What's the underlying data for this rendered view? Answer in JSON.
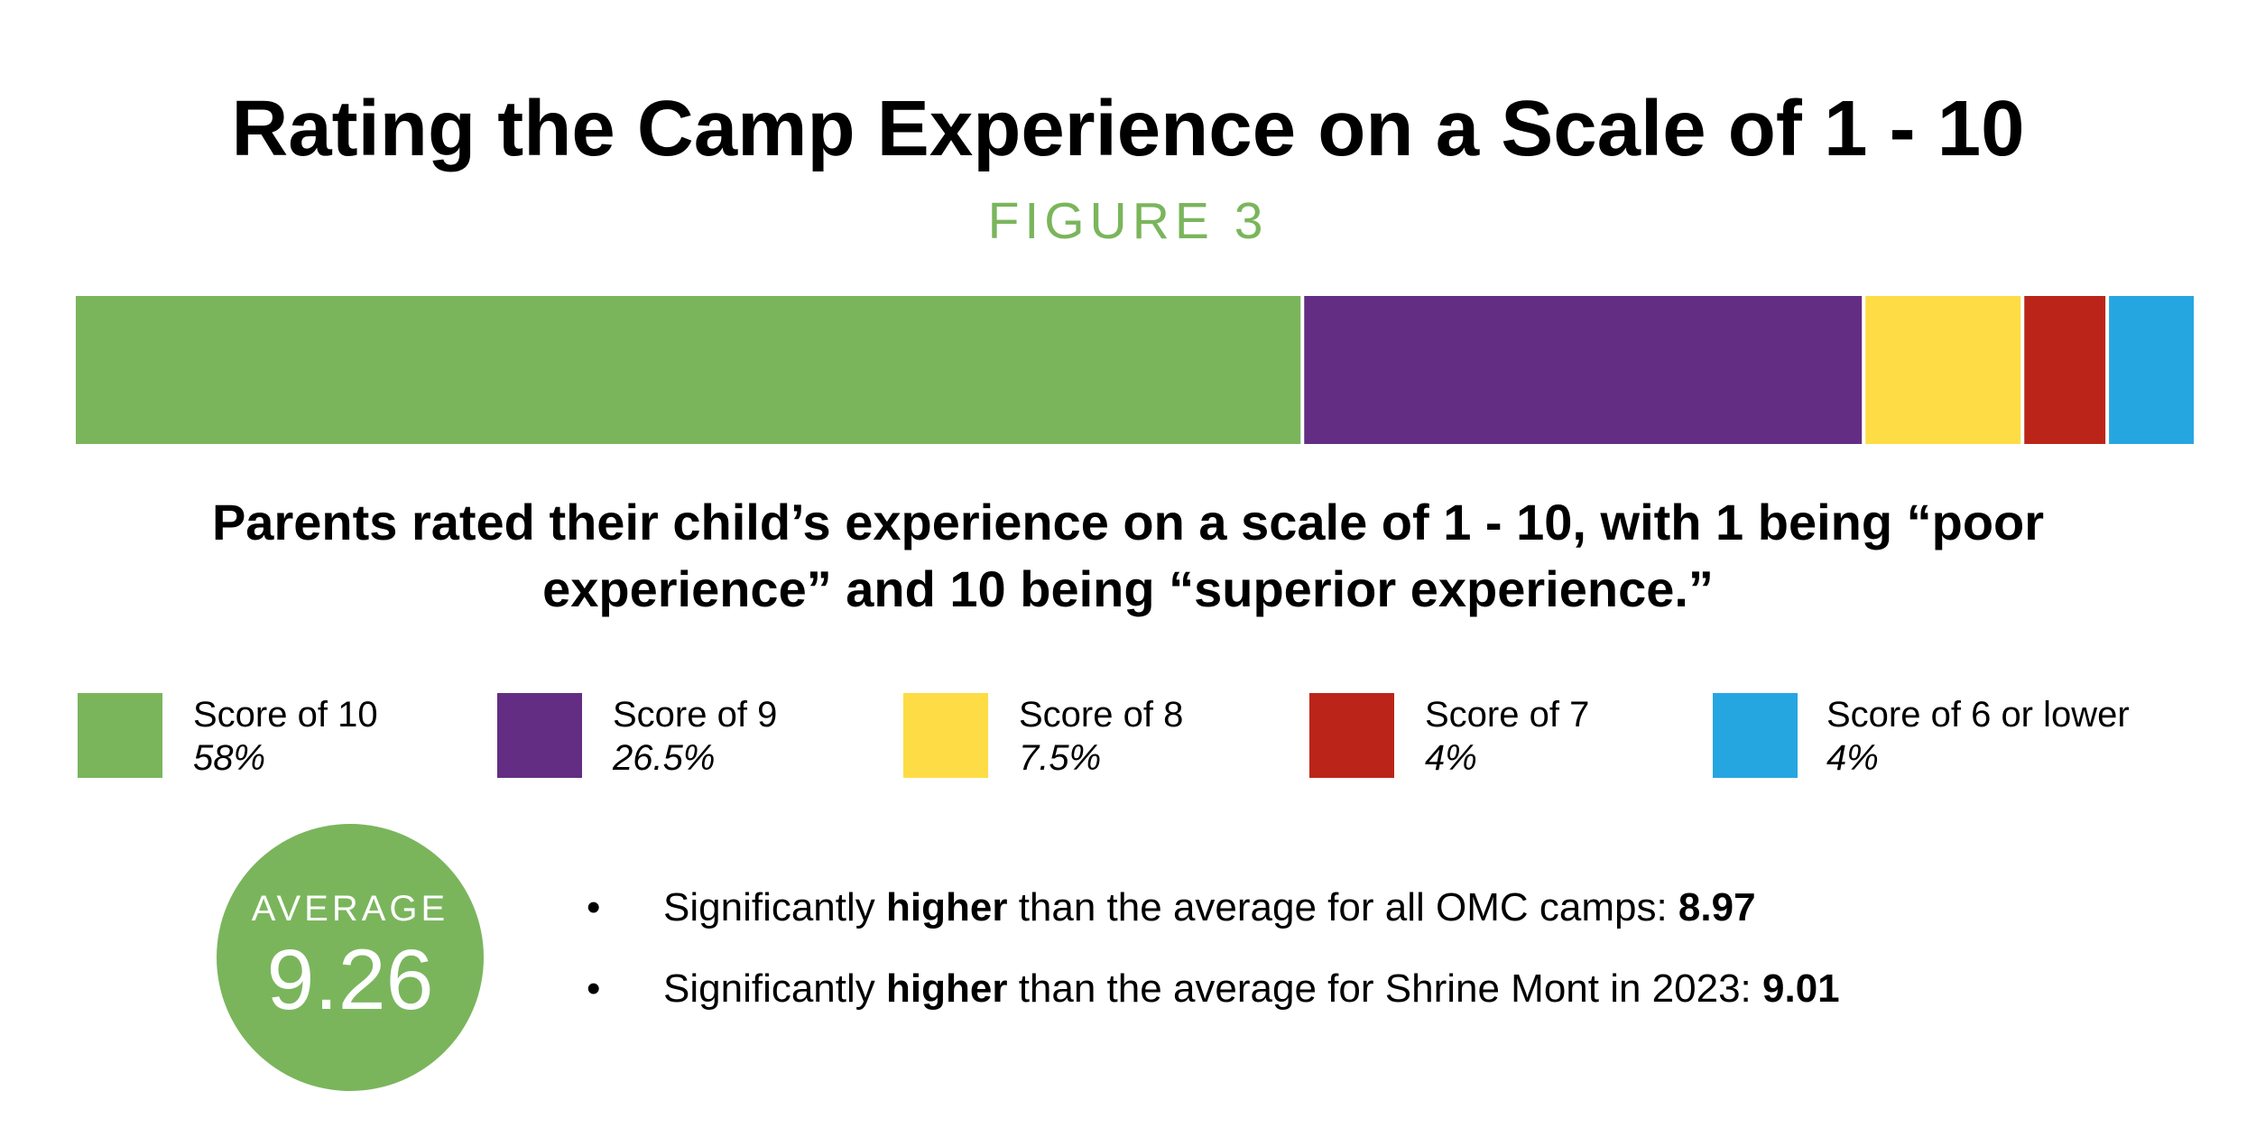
{
  "title": "Rating the Camp Experience on a Scale of 1 - 10",
  "figure_label": "FIGURE 3",
  "description": "Parents rated their child’s experience on a scale of 1 - 10, with 1 being “poor experience” and 10 being “superior experience.”",
  "chart_data": {
    "type": "bar",
    "orientation": "horizontal-stacked-100",
    "title": "Rating the Camp Experience on a Scale of 1 - 10",
    "series": [
      {
        "name": "Score of 10",
        "value": 58,
        "label": "58%",
        "color": "#7ab55c"
      },
      {
        "name": "Score of 9",
        "value": 26.5,
        "label": "26.5%",
        "color": "#632d83"
      },
      {
        "name": "Score of 8",
        "value": 7.5,
        "label": "7.5%",
        "color": "#fedc45"
      },
      {
        "name": "Score of 7",
        "value": 4,
        "label": "4%",
        "color": "#bb2519"
      },
      {
        "name": "Score of 6 or lower",
        "value": 4,
        "label": "4%",
        "color": "#26a6e1"
      }
    ],
    "unit": "%",
    "legend_position": "bottom"
  },
  "average": {
    "label": "AVERAGE",
    "value": "9.26"
  },
  "bullets": [
    {
      "bullet": "•",
      "prefix": "Significantly ",
      "emph": "higher",
      "middle": " than the average for all OMC camps: ",
      "value": "8.97"
    },
    {
      "bullet": "•",
      "prefix": "Significantly ",
      "emph": "higher",
      "middle": " than the average for Shrine Mont in 2023: ",
      "value": "9.01"
    }
  ],
  "colors": {
    "accent_green": "#7ab55c"
  }
}
